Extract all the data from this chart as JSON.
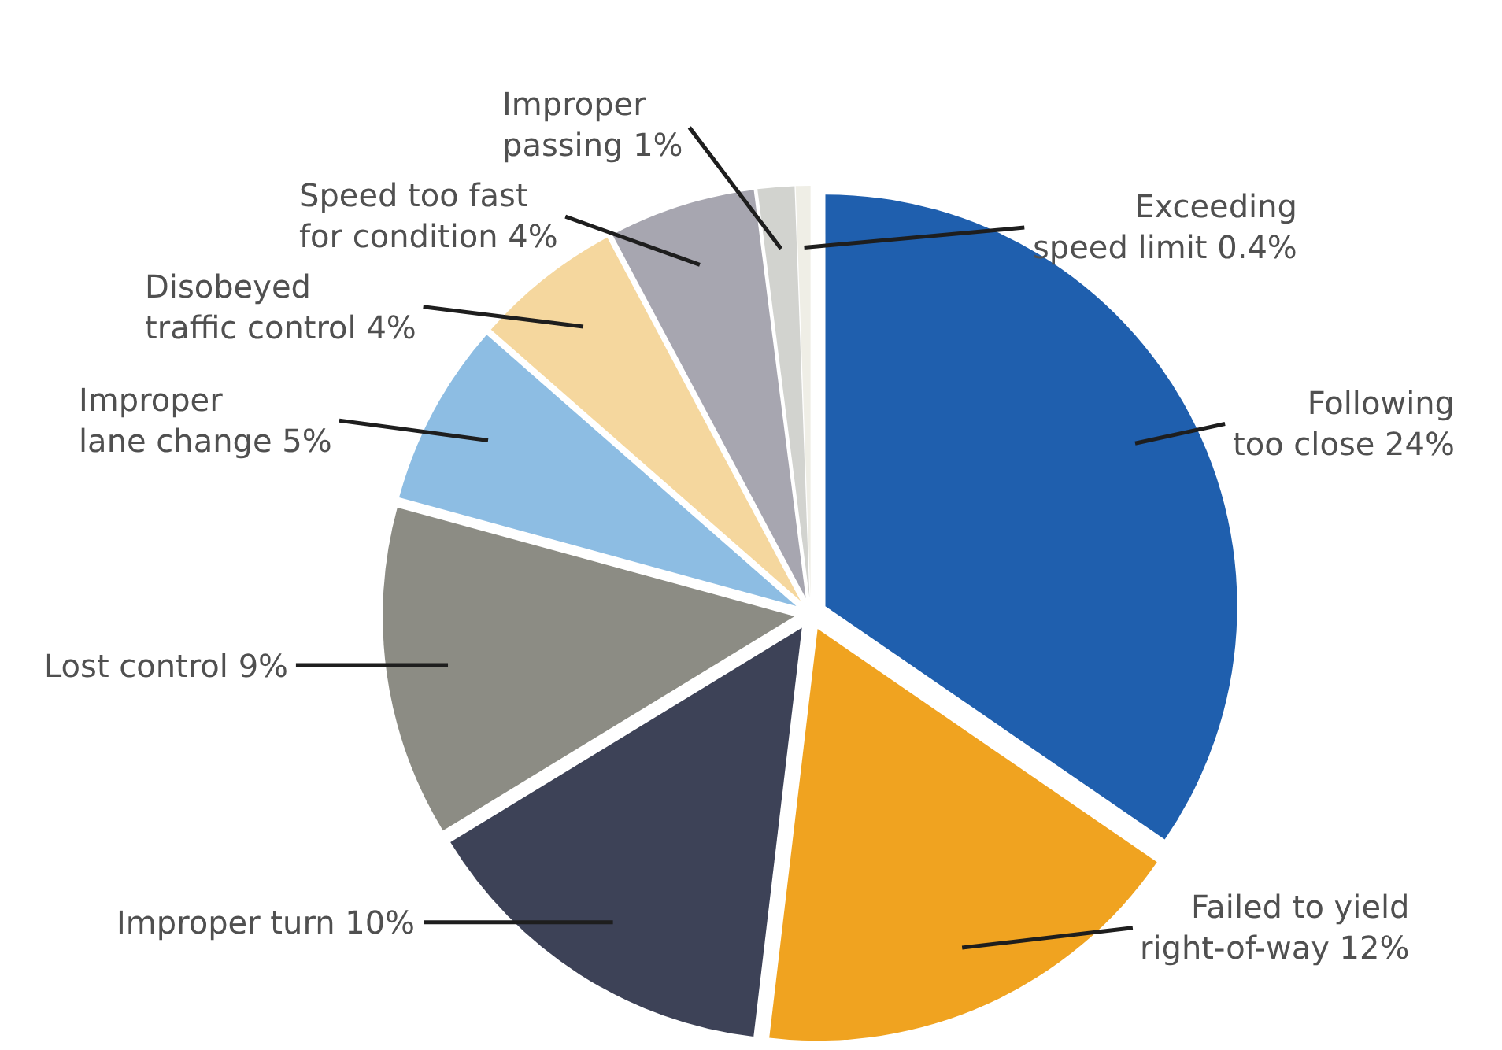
{
  "chart_data": {
    "type": "pie",
    "categories": [
      "Following\ntoo close",
      "Failed to yield\nright-of-way",
      "Improper turn",
      "Lost control",
      "Improper\nlane change",
      "Disobeyed\ntraffic control",
      "Speed too fast\nfor condition",
      "Improper\npassing",
      "Exceeding\nspeed limit"
    ],
    "values": [
      24,
      12,
      10,
      9,
      5,
      4,
      4,
      1,
      0.4
    ],
    "value_labels": [
      "24%",
      "12%",
      "10%",
      "9%",
      "5%",
      "4%",
      "4%",
      "1%",
      "0.4%"
    ],
    "colors": [
      "#1f5fae",
      "#f0a320",
      "#3d4257",
      "#8c8c84",
      "#8dbde3",
      "#f5d79e",
      "#a7a6b0",
      "#d2d3cf",
      "#efeee6"
    ]
  }
}
